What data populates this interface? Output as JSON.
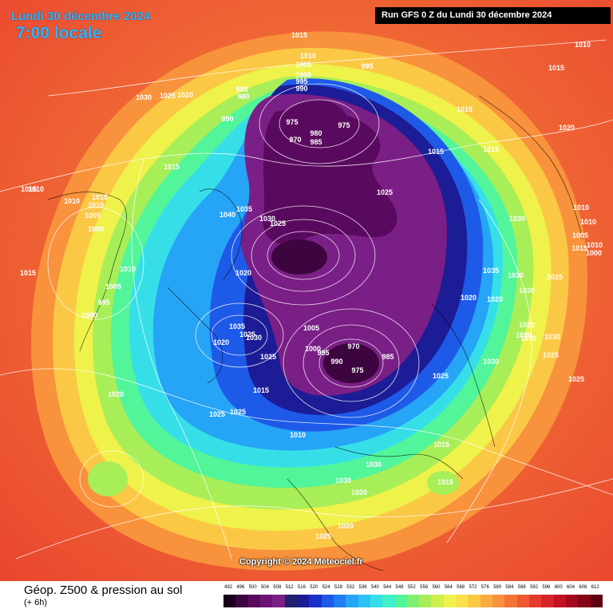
{
  "header": {
    "date": "Lundi 30 décembre 2024",
    "time": "7:00 locale",
    "run": "Run GFS 0 Z du Lundi 30 décembre 2024"
  },
  "copyright": "Copyright © 2024 Meteociel.fr",
  "footer": {
    "title": "Géop. Z500 & pression au sol",
    "subtitle": "(+ 6h)"
  },
  "scale": {
    "labels": [
      "492",
      "496",
      "500",
      "504",
      "508",
      "512",
      "516",
      "520",
      "524",
      "528",
      "532",
      "536",
      "540",
      "544",
      "548",
      "552",
      "556",
      "560",
      "564",
      "568",
      "572",
      "576",
      "580",
      "584",
      "588",
      "592",
      "596",
      "600",
      "604",
      "608",
      "612"
    ],
    "colors": [
      "#1a001a",
      "#3d0540",
      "#5a0a5e",
      "#6e1275",
      "#7a1f86",
      "#20206e",
      "#1c1c96",
      "#1b30c8",
      "#1e5ae8",
      "#1f7ff0",
      "#26a4f5",
      "#2cc3f4",
      "#36dfe8",
      "#3ff0c8",
      "#52f59a",
      "#80f070",
      "#a8ee58",
      "#cdf04c",
      "#eef24a",
      "#fae04a",
      "#fbc845",
      "#f9ad40",
      "#f8923c",
      "#f47436",
      "#ef5832",
      "#e63a2d",
      "#d8222a",
      "#c21024",
      "#a3081e",
      "#820518",
      "#5e0212"
    ]
  },
  "pressure_labels": [
    "1015",
    "1010",
    "1015",
    "1010",
    "1030",
    "1025",
    "1020",
    "985",
    "980",
    "990",
    "1005",
    "1000",
    "995",
    "990",
    "995",
    "975",
    "975",
    "980",
    "970",
    "985",
    "1015",
    "1015",
    "1015",
    "1020",
    "1015",
    "1010",
    "1010",
    "1015",
    "1005",
    "1000",
    "1035",
    "1040",
    "1030",
    "1025",
    "1025",
    "1030",
    "1015",
    "1010",
    "1020",
    "1035",
    "1030",
    "1025",
    "1005",
    "995",
    "1000",
    "1030",
    "1020",
    "1020",
    "1035",
    "1025",
    "1030",
    "1025",
    "1020",
    "1025",
    "1005",
    "1000",
    "995",
    "970",
    "975",
    "985",
    "990",
    "1015",
    "1025",
    "1015",
    "1010",
    "1015",
    "1010",
    "1010",
    "1005",
    "1000",
    "1010",
    "1025",
    "1030",
    "1020",
    "1030",
    "1030",
    "1030",
    "1030",
    "1030",
    "1020",
    "1025",
    "1020",
    "1020",
    "1010",
    "1015",
    "1015",
    "1025",
    "1025"
  ]
}
